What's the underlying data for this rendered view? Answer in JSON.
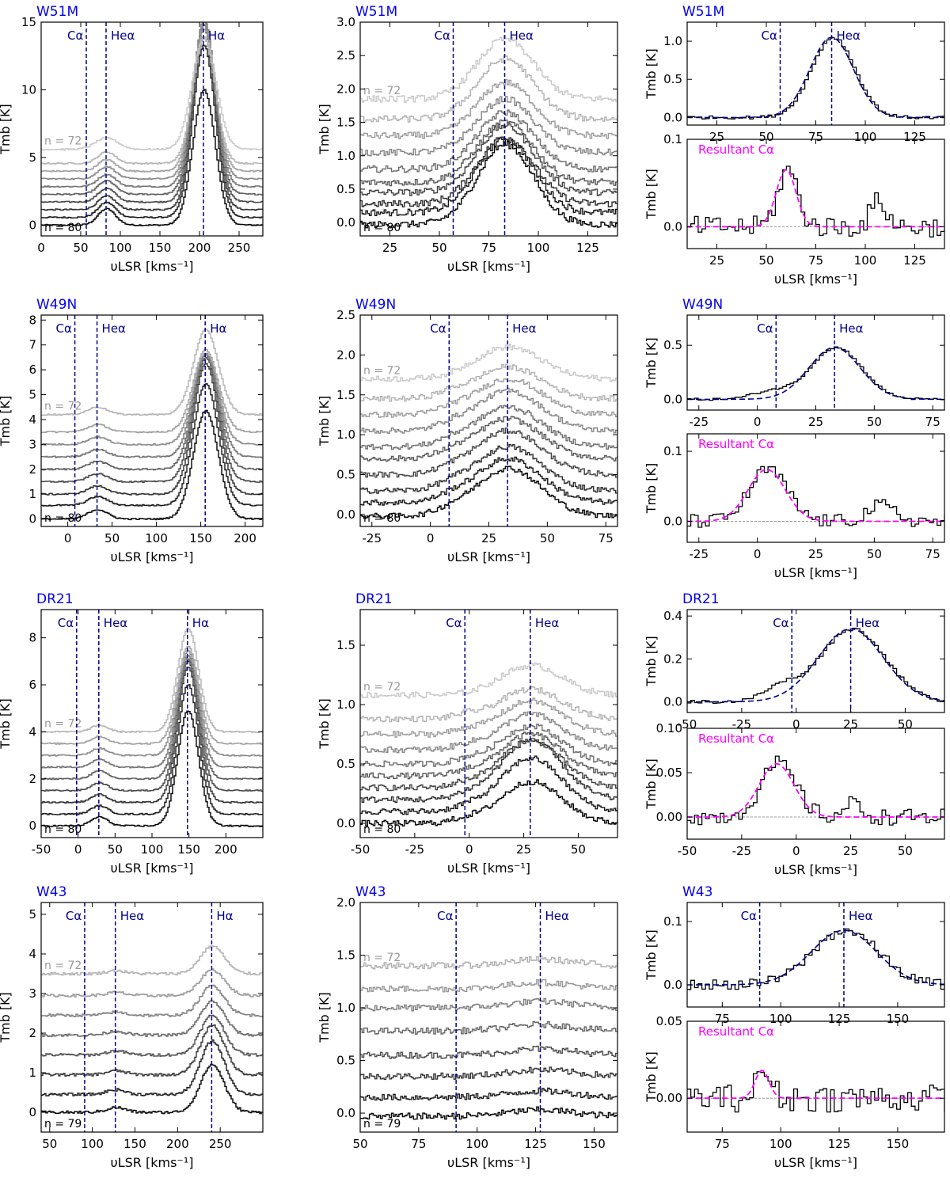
{
  "figure": {
    "xlabel": "υLSR  [kms⁻¹]",
    "ylabel": "Tmb  [K]",
    "colors": {
      "axis": "#000000",
      "line_marker": "#00008b",
      "source_label": "#0000ee",
      "fit": "#ff00ff",
      "zero_line": "#999999",
      "gray_light": "#c8c8c8",
      "gray_dark": "#000000"
    },
    "line_labels": {
      "c": "Cα",
      "he": "Heα",
      "h": "Hα"
    },
    "resultant_label": "Resultant Cα",
    "stack_note": "stacked spectra n=72 (light gray, top) to n=80/79 (black, bottom)"
  },
  "chart_data": [
    {
      "id": "w51m-a",
      "source": "W51M",
      "type": "line",
      "panel": "overview",
      "xlim": [
        0,
        280
      ],
      "xticks": [
        0,
        50,
        100,
        150,
        200,
        250
      ],
      "ylim": [
        -0.8,
        15
      ],
      "yticks": [
        0,
        5,
        10,
        15
      ],
      "markers": [
        {
          "label": "Cα",
          "x": 57
        },
        {
          "label": "Heα",
          "x": 82
        },
        {
          "label": "Hα",
          "x": 205
        }
      ],
      "n_top": "n = 72",
      "n_bottom": "n = 80",
      "n_spectra": 9,
      "baselines": [
        0,
        0.57,
        1.14,
        1.71,
        2.28,
        2.85,
        3.42,
        3.99,
        4.56,
        5.6
      ],
      "h_heights": [
        10,
        12.7,
        12.8,
        12.8,
        12.5,
        12.3,
        11.5,
        10.5,
        9.2
      ],
      "he_heights": [
        1.2,
        1.1,
        1.0,
        1.0,
        1.0,
        0.9,
        0.9,
        0.85,
        0.85
      ],
      "c_heights": [
        0,
        0,
        0,
        0,
        0,
        0,
        0,
        0,
        0
      ],
      "noise": 0.05
    },
    {
      "id": "w51m-b",
      "source": "W51M",
      "type": "line",
      "panel": "zoom",
      "xlim": [
        10,
        140
      ],
      "xticks": [
        25,
        50,
        75,
        100,
        125
      ],
      "ylim": [
        -0.2,
        3.0
      ],
      "yticks": [
        0.0,
        0.5,
        1.0,
        1.5,
        2.0,
        2.5,
        3.0
      ],
      "markers": [
        {
          "label": "Cα",
          "x": 57
        },
        {
          "label": "Heα",
          "x": 83
        }
      ],
      "n_top": "n = 72",
      "n_bottom": "n = 80",
      "n_spectra": 9,
      "baselines": [
        -0.03,
        0.15,
        0.28,
        0.45,
        0.6,
        0.8,
        1.05,
        1.3,
        1.55,
        1.85
      ],
      "he_heights": [
        1.2,
        1.1,
        1.0,
        1.0,
        0.9,
        0.85,
        0.8,
        0.8,
        0.9
      ],
      "c_heights": [
        0,
        0,
        0,
        0,
        0,
        0,
        0,
        0,
        0
      ],
      "noise": 0.05
    },
    {
      "id": "w51m-c",
      "source": "W51M",
      "type": "line",
      "panel": "fit",
      "xlim": [
        10,
        140
      ],
      "xticks": [
        25,
        50,
        75,
        100,
        125
      ],
      "ylim": [
        -0.1,
        1.25
      ],
      "yticks": [
        0.0,
        0.5,
        1.0
      ],
      "markers": [
        {
          "label": "Cα",
          "x": 57
        },
        {
          "label": "Heα",
          "x": 83
        }
      ],
      "fit": {
        "amp": 1.05,
        "center": 83,
        "sigma": 11
      },
      "noise": 0.02
    },
    {
      "id": "w51m-d",
      "source": "W51M",
      "type": "line",
      "panel": "residual",
      "xlim": [
        10,
        140
      ],
      "xticks": [
        25,
        50,
        75,
        100,
        125
      ],
      "ylim": [
        -0.025,
        0.1
      ],
      "yticks": [
        0.0,
        0.1
      ],
      "fit": {
        "amp": 0.065,
        "center": 60,
        "sigma": 5
      },
      "bumps": [
        {
          "center": 106,
          "amp": 0.03,
          "sigma": 4
        }
      ],
      "noise": 0.012
    },
    {
      "id": "w49n-a",
      "source": "W49N",
      "type": "line",
      "panel": "overview",
      "xlim": [
        -30,
        220
      ],
      "xticks": [
        0,
        50,
        100,
        150,
        200
      ],
      "ylim": [
        -0.3,
        8.2
      ],
      "yticks": [
        0,
        1,
        2,
        3,
        4,
        5,
        6,
        7,
        8
      ],
      "markers": [
        {
          "label": "Cα",
          "x": 8
        },
        {
          "label": "Heα",
          "x": 33
        },
        {
          "label": "Hα",
          "x": 155
        }
      ],
      "n_top": "n = 72",
      "n_bottom": "n = 80",
      "n_spectra": 9,
      "baselines": [
        0,
        0.55,
        1.0,
        1.5,
        2.0,
        2.5,
        3.0,
        3.5,
        4.2
      ],
      "h_heights": [
        4.35,
        4.9,
        5.25,
        5.0,
        4.6,
        4.15,
        3.65,
        3.3,
        3.4
      ],
      "he_heights": [
        0.38,
        0.35,
        0.33,
        0.32,
        0.32,
        0.3,
        0.3,
        0.3,
        0.3
      ],
      "c_heights": [
        0,
        0,
        0,
        0,
        0,
        0,
        0,
        0,
        0
      ],
      "noise": 0.03
    },
    {
      "id": "w49n-b",
      "source": "W49N",
      "type": "line",
      "panel": "zoom",
      "xlim": [
        -30,
        80
      ],
      "xticks": [
        -25,
        0,
        25,
        50,
        75
      ],
      "ylim": [
        -0.15,
        2.5
      ],
      "yticks": [
        0.0,
        0.5,
        1.0,
        1.5,
        2.0,
        2.5
      ],
      "markers": [
        {
          "label": "Cα",
          "x": 8
        },
        {
          "label": "Heα",
          "x": 33
        }
      ],
      "n_top": "n = 72",
      "n_bottom": "n = 80",
      "n_spectra": 9,
      "baselines": [
        -0.02,
        0.15,
        0.3,
        0.5,
        0.7,
        0.85,
        1.05,
        1.25,
        1.45,
        1.7
      ],
      "he_heights": [
        0.6,
        0.55,
        0.55,
        0.55,
        0.5,
        0.5,
        0.5,
        0.45,
        0.4
      ],
      "c_heights": [
        0.05,
        0.05,
        0.05,
        0.05,
        0.05,
        0.05,
        0.05,
        0.05,
        0.05
      ],
      "noise": 0.035
    },
    {
      "id": "w49n-c",
      "source": "W49N",
      "type": "line",
      "panel": "fit",
      "xlim": [
        -30,
        80
      ],
      "xticks": [
        -25,
        0,
        25,
        50,
        75
      ],
      "ylim": [
        -0.1,
        0.78
      ],
      "yticks": [
        0.0,
        0.5
      ],
      "markers": [
        {
          "label": "Cα",
          "x": 8
        },
        {
          "label": "Heα",
          "x": 33
        }
      ],
      "fit": {
        "amp": 0.48,
        "center": 33,
        "sigma": 11
      },
      "extra": {
        "amp": 0.07,
        "center": 5,
        "sigma": 8
      },
      "noise": 0.01
    },
    {
      "id": "w49n-d",
      "source": "W49N",
      "type": "line",
      "panel": "residual",
      "xlim": [
        -30,
        80
      ],
      "xticks": [
        -25,
        0,
        25,
        50,
        75
      ],
      "ylim": [
        -0.03,
        0.125
      ],
      "yticks": [
        0.0,
        0.1
      ],
      "fit": {
        "amp": 0.074,
        "center": 4,
        "sigma": 8
      },
      "bumps": [
        {
          "center": 52,
          "amp": 0.022,
          "sigma": 6
        }
      ],
      "noise": 0.01
    },
    {
      "id": "dr21-a",
      "source": "DR21",
      "type": "line",
      "panel": "overview",
      "xlim": [
        -50,
        250
      ],
      "xticks": [
        -50,
        0,
        50,
        100,
        150,
        200
      ],
      "ylim": [
        -0.5,
        9.2
      ],
      "yticks": [
        0,
        2,
        4,
        6,
        8
      ],
      "markers": [
        {
          "label": "Cα",
          "x": -2
        },
        {
          "label": "Heα",
          "x": 28
        },
        {
          "label": "Hα",
          "x": 148
        }
      ],
      "n_top": "n = 72",
      "n_bottom": "n = 80",
      "n_spectra": 9,
      "baselines": [
        0,
        0.5,
        1.0,
        1.5,
        2.0,
        2.5,
        3.0,
        3.5,
        4.0
      ],
      "h_heights": [
        4.9,
        5.5,
        5.75,
        5.5,
        5.1,
        4.75,
        4.45,
        4.15,
        4.4
      ],
      "he_heights": [
        0.38,
        0.36,
        0.34,
        0.33,
        0.33,
        0.32,
        0.3,
        0.3,
        0.28
      ],
      "c_heights": [
        0,
        0,
        0,
        0,
        0,
        0,
        0,
        0,
        0
      ],
      "noise": 0.03
    },
    {
      "id": "dr21-b",
      "source": "DR21",
      "type": "line",
      "panel": "zoom",
      "xlim": [
        -50,
        68
      ],
      "xticks": [
        -50,
        -25,
        0,
        25,
        50
      ],
      "ylim": [
        -0.12,
        1.8
      ],
      "yticks": [
        0.0,
        0.5,
        1.0,
        1.5
      ],
      "markers": [
        {
          "label": "Cα",
          "x": -2
        },
        {
          "label": "Heα",
          "x": 28
        }
      ],
      "n_top": "n = 72",
      "n_bottom": "n = 80",
      "n_spectra": 9,
      "baselines": [
        0,
        0.1,
        0.2,
        0.3,
        0.4,
        0.5,
        0.62,
        0.75,
        0.88,
        1.08
      ],
      "he_heights": [
        0.35,
        0.45,
        0.5,
        0.4,
        0.35,
        0.32,
        0.3,
        0.28,
        0.25
      ],
      "c_heights": [
        0.03,
        0.03,
        0.03,
        0.03,
        0.03,
        0.03,
        0.03,
        0.03,
        0.03
      ],
      "noise": 0.025
    },
    {
      "id": "dr21-c",
      "source": "DR21",
      "type": "line",
      "panel": "fit",
      "xlim": [
        -50,
        68
      ],
      "xticks": [
        -50,
        -25,
        0,
        25,
        50
      ],
      "ylim": [
        -0.05,
        0.43
      ],
      "yticks": [
        0.0,
        0.2,
        0.4
      ],
      "markers": [
        {
          "label": "Cα",
          "x": -2
        },
        {
          "label": "Heα",
          "x": 25
        }
      ],
      "fit": {
        "amp": 0.34,
        "center": 25,
        "sigma": 15
      },
      "extra": {
        "amp": 0.06,
        "center": -8,
        "sigma": 8
      },
      "noise": 0.008
    },
    {
      "id": "dr21-d",
      "source": "DR21",
      "type": "line",
      "panel": "residual",
      "xlim": [
        -50,
        68
      ],
      "xticks": [
        -50,
        -25,
        0,
        25,
        50
      ],
      "ylim": [
        -0.025,
        0.1
      ],
      "yticks": [
        0.0,
        0.05,
        0.1
      ],
      "ytick_labels": [
        "0.00",
        "0.05",
        "0.10"
      ],
      "fit": {
        "amp": 0.06,
        "center": -9,
        "sigma": 8
      },
      "bumps": [
        {
          "center": 25,
          "amp": 0.015,
          "sigma": 4
        }
      ],
      "noise": 0.009
    },
    {
      "id": "w43-a",
      "source": "W43",
      "type": "line",
      "panel": "overview",
      "xlim": [
        40,
        300
      ],
      "xticks": [
        50,
        100,
        150,
        200,
        250
      ],
      "ylim": [
        -0.5,
        5.3
      ],
      "yticks": [
        0,
        1,
        2,
        3,
        4,
        5
      ],
      "markers": [
        {
          "label": "Cα",
          "x": 91
        },
        {
          "label": "Heα",
          "x": 127
        },
        {
          "label": "Hα",
          "x": 240
        }
      ],
      "n_top": "n = 72",
      "n_bottom": "n = 79",
      "n_spectra": 8,
      "baselines": [
        0,
        0.45,
        0.95,
        1.45,
        1.95,
        2.45,
        2.95,
        3.5
      ],
      "h_heights": [
        1.2,
        1.35,
        1.25,
        1.0,
        0.85,
        0.75,
        0.65,
        0.7
      ],
      "he_heights": [
        0.12,
        0.12,
        0.1,
        0.1,
        0.1,
        0.08,
        0.08,
        0.08
      ],
      "c_heights": [
        0,
        0,
        0,
        0,
        0,
        0,
        0,
        0
      ],
      "noise": 0.035
    },
    {
      "id": "w43-b",
      "source": "W43",
      "type": "line",
      "panel": "zoom",
      "xlim": [
        50,
        160
      ],
      "xticks": [
        50,
        75,
        100,
        125,
        150
      ],
      "ylim": [
        -0.18,
        2.0
      ],
      "yticks": [
        0.0,
        0.5,
        1.0,
        1.5,
        2.0
      ],
      "markers": [
        {
          "label": "Cα",
          "x": 91
        },
        {
          "label": "Heα",
          "x": 127
        }
      ],
      "n_top": "n = 72",
      "n_bottom": "n = 79",
      "n_spectra": 8,
      "baselines": [
        -0.03,
        0.15,
        0.35,
        0.55,
        0.78,
        1.0,
        1.18,
        1.4
      ],
      "he_heights": [
        0.06,
        0.06,
        0.06,
        0.06,
        0.06,
        0.06,
        0.06,
        0.06
      ],
      "c_heights": [
        0,
        0,
        0,
        0,
        0,
        0,
        0,
        0
      ],
      "noise": 0.03
    },
    {
      "id": "w43-c",
      "source": "W43",
      "type": "line",
      "panel": "fit",
      "xlim": [
        60,
        170
      ],
      "xticks": [
        75,
        100,
        125,
        150
      ],
      "ylim": [
        -0.035,
        0.13
      ],
      "yticks": [
        0.0,
        0.1
      ],
      "markers": [
        {
          "label": "Cα",
          "x": 91
        },
        {
          "label": "Heα",
          "x": 127
        }
      ],
      "fit": {
        "amp": 0.086,
        "center": 127,
        "sigma": 14
      },
      "noise": 0.008
    },
    {
      "id": "w43-d",
      "source": "W43",
      "type": "line",
      "panel": "residual",
      "xlim": [
        60,
        170
      ],
      "xticks": [
        75,
        100,
        125,
        150
      ],
      "ylim": [
        -0.022,
        0.05
      ],
      "yticks": [
        0.0,
        0.05
      ],
      "ytick_labels": [
        "0.00",
        "0.05"
      ],
      "fit": {
        "amp": 0.018,
        "center": 92,
        "sigma": 3
      },
      "bumps": [],
      "noise": 0.009
    }
  ]
}
